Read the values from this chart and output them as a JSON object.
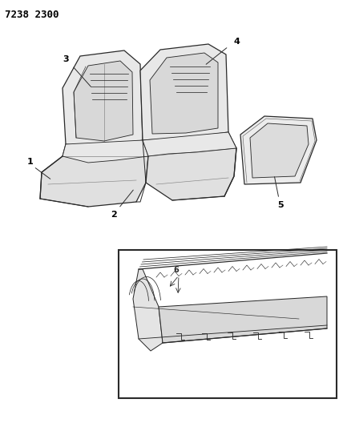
{
  "title_code": "7238 2300",
  "bg_color": "#ffffff",
  "line_color": "#2a2a2a",
  "label_color": "#000000",
  "fig_width": 4.28,
  "fig_height": 5.33,
  "dpi": 100,
  "seat_fill": "#e8e8e8",
  "seat_fill2": "#d8d8d8"
}
